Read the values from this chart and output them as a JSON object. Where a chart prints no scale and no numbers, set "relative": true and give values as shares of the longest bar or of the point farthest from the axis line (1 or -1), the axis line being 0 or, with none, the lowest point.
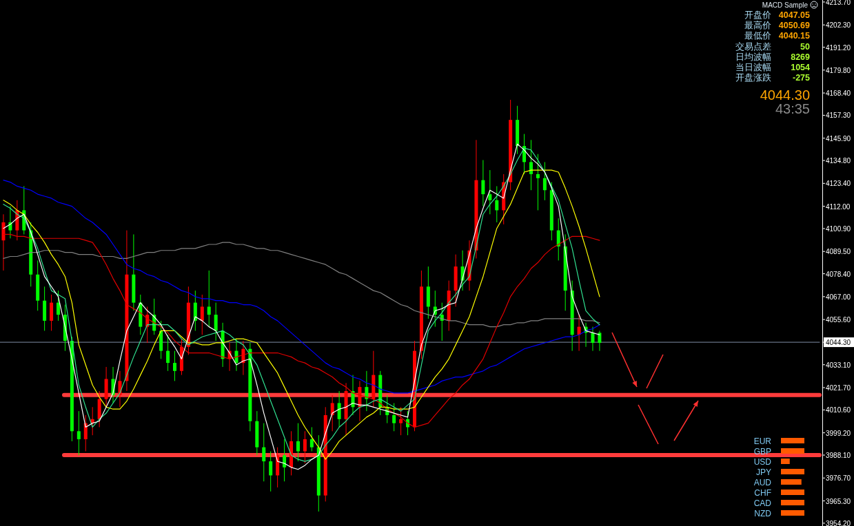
{
  "chart_data": [
    {
      "type": "candlestick",
      "categories": [
        null,
        null,
        null,
        null,
        null,
        null,
        null,
        null,
        null,
        null,
        null,
        null,
        null,
        null,
        null,
        null,
        null,
        null,
        null,
        null,
        null,
        null,
        null,
        null,
        null,
        null,
        null,
        null,
        null,
        null,
        null,
        null,
        null,
        null,
        null,
        null,
        null,
        null,
        null,
        null,
        null,
        null,
        null,
        null,
        null,
        null,
        null,
        null,
        null,
        null,
        null,
        null,
        null,
        null,
        null,
        null,
        null,
        null,
        null,
        null,
        null,
        null,
        null,
        null,
        null,
        null,
        null,
        null,
        null,
        null,
        null,
        null,
        null,
        null,
        null,
        null,
        null,
        null,
        null,
        null,
        null,
        null,
        null,
        null,
        null,
        null,
        null,
        null,
        null,
        null,
        null,
        null,
        null,
        null,
        null,
        null,
        null,
        null,
        null,
        null,
        null,
        null,
        null,
        null,
        null,
        null,
        null,
        null,
        null,
        null,
        null,
        null,
        null,
        null,
        null,
        null,
        null,
        null,
        null,
        null
      ],
      "ohlc": [
        [
          4095,
          4108,
          4080,
          4104
        ],
        [
          4104,
          4112,
          4096,
          4100
        ],
        [
          4100,
          4115,
          4095,
          4110
        ],
        [
          4110,
          4122,
          4098,
          4100
        ],
        [
          4100,
          4104,
          4072,
          4078
        ],
        [
          4078,
          4085,
          4060,
          4065
        ],
        [
          4065,
          4072,
          4050,
          4055
        ],
        [
          4055,
          4068,
          4050,
          4064
        ],
        [
          4064,
          4070,
          4055,
          4058
        ],
        [
          4058,
          4063,
          4040,
          4045
        ],
        [
          4045,
          4047,
          3995,
          4000
        ],
        [
          4000,
          4010,
          3988,
          3996
        ],
        [
          3996,
          4008,
          3990,
          4004
        ],
        [
          4004,
          4012,
          3998,
          4006
        ],
        [
          4006,
          4020,
          4002,
          4016
        ],
        [
          4016,
          4032,
          4012,
          4026
        ],
        [
          4026,
          4032,
          4014,
          4018
        ],
        [
          4018,
          4030,
          4012,
          4025
        ],
        [
          4025,
          4100,
          4020,
          4078
        ],
        [
          4078,
          4098,
          4060,
          4064
        ],
        [
          4064,
          4068,
          4048,
          4052
        ],
        [
          4052,
          4062,
          4044,
          4058
        ],
        [
          4058,
          4066,
          4048,
          4050
        ],
        [
          4050,
          4055,
          4036,
          4040
        ],
        [
          4040,
          4048,
          4030,
          4034
        ],
        [
          4034,
          4040,
          4025,
          4030
        ],
        [
          4030,
          4046,
          4028,
          4042
        ],
        [
          4042,
          4072,
          4038,
          4064
        ],
        [
          4064,
          4070,
          4050,
          4055
        ],
        [
          4055,
          4068,
          4048,
          4062
        ],
        [
          4062,
          4080,
          4052,
          4058
        ],
        [
          4058,
          4064,
          4045,
          4050
        ],
        [
          4050,
          4054,
          4032,
          4036
        ],
        [
          4036,
          4044,
          4030,
          4040
        ],
        [
          4040,
          4046,
          4030,
          4034
        ],
        [
          4034,
          4045,
          4028,
          4041
        ],
        [
          4041,
          4044,
          4000,
          4005
        ],
        [
          4005,
          4010,
          3988,
          3992
        ],
        [
          3992,
          4004,
          3975,
          3985
        ],
        [
          3985,
          3990,
          3970,
          3978
        ],
        [
          3978,
          3992,
          3972,
          3988
        ],
        [
          3988,
          3996,
          3975,
          3982
        ],
        [
          3982,
          4000,
          3978,
          3995
        ],
        [
          3995,
          4004,
          3985,
          3990
        ],
        [
          3990,
          4000,
          3984,
          3996
        ],
        [
          3996,
          4002,
          3990,
          3992
        ],
        [
          3992,
          3998,
          3960,
          3968
        ],
        [
          3968,
          4012,
          3965,
          4008
        ],
        [
          4008,
          4018,
          4000,
          4014
        ],
        [
          4014,
          4020,
          4002,
          4006
        ],
        [
          4006,
          4024,
          3998,
          4020
        ],
        [
          4020,
          4028,
          4008,
          4012
        ],
        [
          4012,
          4025,
          4005,
          4022
        ],
        [
          4022,
          4030,
          4010,
          4016
        ],
        [
          4016,
          4040,
          4012,
          4028
        ],
        [
          4028,
          4030,
          4008,
          4012
        ],
        [
          4012,
          4018,
          4004,
          4008
        ],
        [
          4008,
          4014,
          4000,
          4004
        ],
        [
          4004,
          4012,
          3998,
          4006
        ],
        [
          4006,
          4010,
          3998,
          4002
        ],
        [
          4002,
          4045,
          4000,
          4040
        ],
        [
          4040,
          4080,
          4036,
          4072
        ],
        [
          4072,
          4082,
          4056,
          4062
        ],
        [
          4062,
          4070,
          4052,
          4058
        ],
        [
          4058,
          4064,
          4045,
          4055
        ],
        [
          4055,
          4075,
          4050,
          4070
        ],
        [
          4070,
          4088,
          4062,
          4082
        ],
        [
          4082,
          4090,
          4070,
          4075
        ],
        [
          4075,
          4095,
          4070,
          4090
        ],
        [
          4090,
          4145,
          4086,
          4125
        ],
        [
          4125,
          4135,
          4112,
          4118
        ],
        [
          4118,
          4130,
          4108,
          4115
        ],
        [
          4115,
          4122,
          4104,
          4110
        ],
        [
          4110,
          4128,
          4103,
          4124
        ],
        [
          4124,
          4165,
          4120,
          4155
        ],
        [
          4155,
          4162,
          4138,
          4142
        ],
        [
          4142,
          4148,
          4128,
          4134
        ],
        [
          4134,
          4145,
          4120,
          4128
        ],
        [
          4128,
          4138,
          4110,
          4126
        ],
        [
          4126,
          4134,
          4115,
          4120
        ],
        [
          4120,
          4124,
          4095,
          4100
        ],
        [
          4100,
          4106,
          4085,
          4092
        ],
        [
          4092,
          4098,
          4060,
          4070
        ],
        [
          4070,
          4075,
          4040,
          4048
        ],
        [
          4048,
          4058,
          4040,
          4052
        ],
        [
          4052,
          4054,
          4042,
          4049
        ],
        [
          4049,
          4052,
          4040,
          4044
        ],
        [
          4049,
          4050,
          4040,
          4044
        ],
        null,
        null,
        null,
        null,
        null,
        null,
        null,
        null,
        null,
        null,
        null,
        null,
        null,
        null,
        null,
        null,
        null,
        null,
        null,
        null,
        null,
        null,
        null,
        null,
        null,
        null,
        null,
        null,
        null,
        null,
        null,
        null
      ],
      "series": [
        {
          "type": "line",
          "color": "#808080",
          "values": [
            4086,
            4087,
            4087,
            4088,
            4089,
            4089,
            4090,
            4090,
            4090,
            4089,
            4089,
            4088,
            4088,
            4088,
            4087,
            4087,
            4087,
            4086,
            4086,
            4087,
            4088,
            4089,
            4089,
            4090,
            4090,
            4090,
            4091,
            4091,
            4091,
            4092,
            4093,
            4093,
            4094,
            4094,
            4093,
            4093,
            4092,
            4091,
            4091,
            4090,
            4090,
            4089,
            4088,
            4087,
            4086,
            4085,
            4084,
            4083,
            4081,
            4079,
            4078,
            4076,
            4074,
            4072,
            4070,
            4069,
            4067,
            4065,
            4063,
            4062,
            4060,
            4059,
            4058,
            4057,
            4056,
            4055,
            4055,
            4054,
            4053,
            4053,
            4053,
            4052,
            4052,
            4053,
            4053,
            4054,
            4054,
            4055,
            4055,
            4056,
            4056,
            4056,
            4056,
            4056,
            4056,
            4055,
            4055,
            4054,
            null,
            null,
            null,
            null,
            null,
            null,
            null,
            null,
            null,
            null,
            null,
            null,
            null,
            null,
            null,
            null,
            null,
            null,
            null,
            null,
            null,
            null,
            null,
            null,
            null,
            null,
            null,
            null,
            null,
            null,
            null,
            null
          ]
        },
        {
          "type": "line",
          "color": "#0000ff",
          "values": [
            4125,
            4124,
            4122,
            4121,
            4120,
            4118,
            4117,
            4116,
            4114,
            4113,
            4112,
            4109,
            4106,
            4104,
            4101,
            4098,
            4093,
            4088,
            4083,
            4081,
            4080,
            4078,
            4077,
            4075,
            4074,
            4072,
            4070,
            4069,
            4067,
            4066,
            4066,
            4065,
            4065,
            4064,
            4064,
            4063,
            4063,
            4062,
            4060,
            4057,
            4055,
            4052,
            4049,
            4046,
            4043,
            4040,
            4037,
            4034,
            4032,
            4031,
            4029,
            4027,
            4026,
            4024,
            4023,
            4021,
            4020,
            4019,
            4019,
            4019,
            4020,
            4021,
            4022,
            4023,
            4025,
            4026,
            4027,
            4027,
            4028,
            4029,
            4030,
            4032,
            4033,
            4035,
            4037,
            4039,
            4041,
            4042,
            4043,
            4044,
            4045,
            4046,
            4047,
            4047,
            4048,
            4050,
            4051,
            4053,
            null,
            null,
            null,
            null,
            null,
            null,
            null,
            null,
            null,
            null,
            null,
            null,
            null,
            null,
            null,
            null,
            null,
            null,
            null,
            null,
            null,
            null,
            null,
            null,
            null,
            null,
            null,
            null,
            null,
            null,
            null,
            null
          ]
        },
        {
          "type": "line",
          "color": "#e00000",
          "values": [
            4098,
            4098,
            4097,
            4097,
            4096,
            4096,
            4096,
            4096,
            4096,
            4096,
            4096,
            4096,
            4095,
            4094,
            4089,
            4083,
            4076,
            4070,
            4063,
            4061,
            4059,
            4056,
            4054,
            4052,
            4049,
            4045,
            4042,
            4039,
            4039,
            4039,
            4039,
            4038,
            4037,
            4036,
            4037,
            4038,
            4039,
            4039,
            4039,
            4039,
            4039,
            4038,
            4037,
            4035,
            4034,
            4032,
            4031,
            4029,
            4027,
            4024,
            4022,
            4019,
            4018,
            4017,
            4016,
            4014,
            4011,
            4009,
            4007,
            4004,
            4002,
            4003,
            4004,
            4008,
            4012,
            4016,
            4019,
            4023,
            4026,
            4031,
            4036,
            4044,
            4052,
            4059,
            4067,
            4072,
            4076,
            4081,
            4084,
            4088,
            4091,
            4093,
            4095,
            4097,
            4097,
            4097,
            4096,
            4095,
            null,
            null,
            null,
            null,
            null,
            null,
            null,
            null,
            null,
            null,
            null,
            null,
            null,
            null,
            null,
            null,
            null,
            null,
            null,
            null,
            null,
            null,
            null,
            null,
            null,
            null,
            null,
            null,
            null,
            null,
            null,
            null
          ]
        },
        {
          "type": "line",
          "color": "#ffff00",
          "values": [
            4115,
            4113,
            4110,
            4108,
            4103,
            4099,
            4094,
            4088,
            4083,
            4077,
            4064,
            4043,
            4033,
            4023,
            4017,
            4012,
            4011,
            4011,
            4015,
            4021,
            4028,
            4035,
            4043,
            4050,
            4050,
            4050,
            4047,
            4044,
            4044,
            4043,
            4043,
            4044,
            4044,
            4045,
            4046,
            4046,
            4045,
            4044,
            4039,
            4034,
            4029,
            4022,
            4015,
            4008,
            4002,
            3997,
            3992,
            3986,
            3990,
            3995,
            3998,
            4001,
            4004,
            4007,
            4009,
            4012,
            4012,
            4011,
            4011,
            4011,
            4012,
            4017,
            4022,
            4027,
            4031,
            4036,
            4043,
            4050,
            4057,
            4067,
            4077,
            4089,
            4101,
            4107,
            4113,
            4121,
            4129,
            4130,
            4130,
            4130,
            4130,
            4129,
            4121,
            4112,
            4102,
            4091,
            4079,
            4067,
            null,
            null,
            null,
            null,
            null,
            null,
            null,
            null,
            null,
            null,
            null,
            null,
            null,
            null,
            null,
            null,
            null,
            null,
            null,
            null,
            null,
            null,
            null,
            null,
            null,
            null,
            null,
            null,
            null,
            null,
            null,
            null
          ]
        },
        {
          "type": "line",
          "color": "#30e090",
          "values": [
            4113,
            4111,
            4108,
            4106,
            4099,
            4091,
            4080,
            4070,
            4068,
            4066,
            4045,
            4023,
            4012,
            4002,
            4006,
            4009,
            4014,
            4019,
            4028,
            4037,
            4045,
            4053,
            4053,
            4053,
            4053,
            4050,
            4046,
            4043,
            4045,
            4047,
            4048,
            4049,
            4050,
            4048,
            4045,
            4043,
            4038,
            4033,
            4024,
            4015,
            4006,
            3997,
            3988,
            3986,
            3985,
            3986,
            3988,
            3993,
            3997,
            4002,
            4005,
            4009,
            4012,
            4013,
            4015,
            4016,
            4014,
            4012,
            4010,
            4013,
            4016,
            4033,
            4050,
            4055,
            4059,
            4064,
            4068,
            4073,
            4077,
            4092,
            4108,
            4113,
            4117,
            4122,
            4128,
            4135,
            4141,
            4140,
            4135,
            4129,
            4122,
            4115,
            4103,
            4091,
            4075,
            4060,
            4056,
            4053,
            null,
            null,
            null,
            null,
            null,
            null,
            null,
            null,
            null,
            null,
            null,
            null,
            null,
            null,
            null,
            null,
            null,
            null,
            null,
            null,
            null,
            null,
            null,
            null,
            null,
            null,
            null,
            null,
            null,
            null,
            null,
            null
          ]
        },
        {
          "type": "line",
          "color": "#ffffff",
          "values": [
            4101,
            4103,
            4106,
            4108,
            4099,
            4088,
            4077,
            4072,
            4067,
            4052,
            4036,
            4019,
            4002,
            4004,
            4005,
            4012,
            4019,
            4035,
            4050,
            4057,
            4064,
            4060,
            4057,
            4053,
            4047,
            4042,
            4036,
            4047,
            4057,
            4055,
            4052,
            4050,
            4044,
            4039,
            4033,
            4035,
            4036,
            4023,
            4009,
            3997,
            3985,
            3984,
            3982,
            3981,
            3983,
            3986,
            3988,
            3999,
            4009,
            4011,
            4012,
            4014,
            4013,
            4013,
            4012,
            4011,
            4010,
            4009,
            4008,
            4007,
            4025,
            4043,
            4052,
            4060,
            4061,
            4063,
            4064,
            4076,
            4088,
            4101,
            4111,
            4120,
            4118,
            4116,
            4130,
            4143,
            4140,
            4136,
            4133,
            4129,
            4121,
            4112,
            4090,
            4067,
            4058,
            4050,
            4049,
            4048,
            null,
            null,
            null,
            null,
            null,
            null,
            null,
            null,
            null,
            null,
            null,
            null,
            null,
            null,
            null,
            null,
            null,
            null,
            null,
            null,
            null,
            null,
            null,
            null,
            null,
            null,
            null,
            null,
            null,
            null,
            null,
            null
          ]
        }
      ],
      "ylim": [
        3952.8,
        4214.7
      ],
      "yticks": [
        {
          "value": 3954.2,
          "label": "3954.20"
        },
        {
          "value": 3965.3,
          "label": "3965.30"
        },
        {
          "value": 3976.7,
          "label": "3976.70"
        },
        {
          "value": 3988.1,
          "label": "3988.10"
        },
        {
          "value": 3999.2,
          "label": "3999.20"
        },
        {
          "value": 4010.6,
          "label": "4010.60"
        },
        {
          "value": 4021.7,
          "label": "4021.70"
        },
        {
          "value": 4033.1,
          "label": "4033.10"
        },
        {
          "value": 4044.3,
          "label": "4044.30"
        },
        {
          "value": 4055.6,
          "label": "4055.60"
        },
        {
          "value": 4067,
          "label": "4067.00"
        },
        {
          "value": 4078.4,
          "label": "4078.40"
        },
        {
          "value": 4089.5,
          "label": "4089.50"
        },
        {
          "value": 4100.9,
          "label": "4100.90"
        },
        {
          "value": 4112,
          "label": "4112.00"
        },
        {
          "value": 4123.4,
          "label": "4123.40"
        },
        {
          "value": 4134.8,
          "label": "4134.80"
        },
        {
          "value": 4145.9,
          "label": "4145.90"
        },
        {
          "value": 4157.3,
          "label": "4157.30"
        },
        {
          "value": 4168.4,
          "label": "4168.40"
        },
        {
          "value": 4179.8,
          "label": "4179.80"
        },
        {
          "value": 4191.2,
          "label": "4191.20"
        },
        {
          "value": 4202.3,
          "label": "4202.30"
        },
        {
          "value": 4213.7,
          "label": "4213.70"
        }
      ],
      "ref_lines": [
        {
          "axis": "y",
          "value": 4044.3,
          "color": "#8090a8"
        },
        {
          "axis": "y",
          "value": 4018,
          "color": "#ff3b3b"
        },
        {
          "axis": "y",
          "value": 3988.1,
          "color": "#ff3b3b"
        }
      ],
      "annotations": [
        "MACD Sample",
        "开盘价 4047.05",
        "最高价 4050.69",
        "最低价 4040.15",
        "交易点差 50",
        "日均波幅 8269",
        "当日波幅 1054",
        "开盘涨跌 -275",
        "4044.30",
        "43:35"
      ]
    },
    {
      "type": "bar",
      "orientation": "horizontal",
      "relative": true,
      "color": "#ff5a00",
      "categories": [
        "EUR",
        "GBP",
        "USD",
        "JPY",
        "AUD",
        "CHF",
        "CAD",
        "NZD"
      ],
      "values": [
        1,
        1,
        0.375,
        1,
        0.875,
        1,
        1,
        1
      ]
    }
  ]
}
